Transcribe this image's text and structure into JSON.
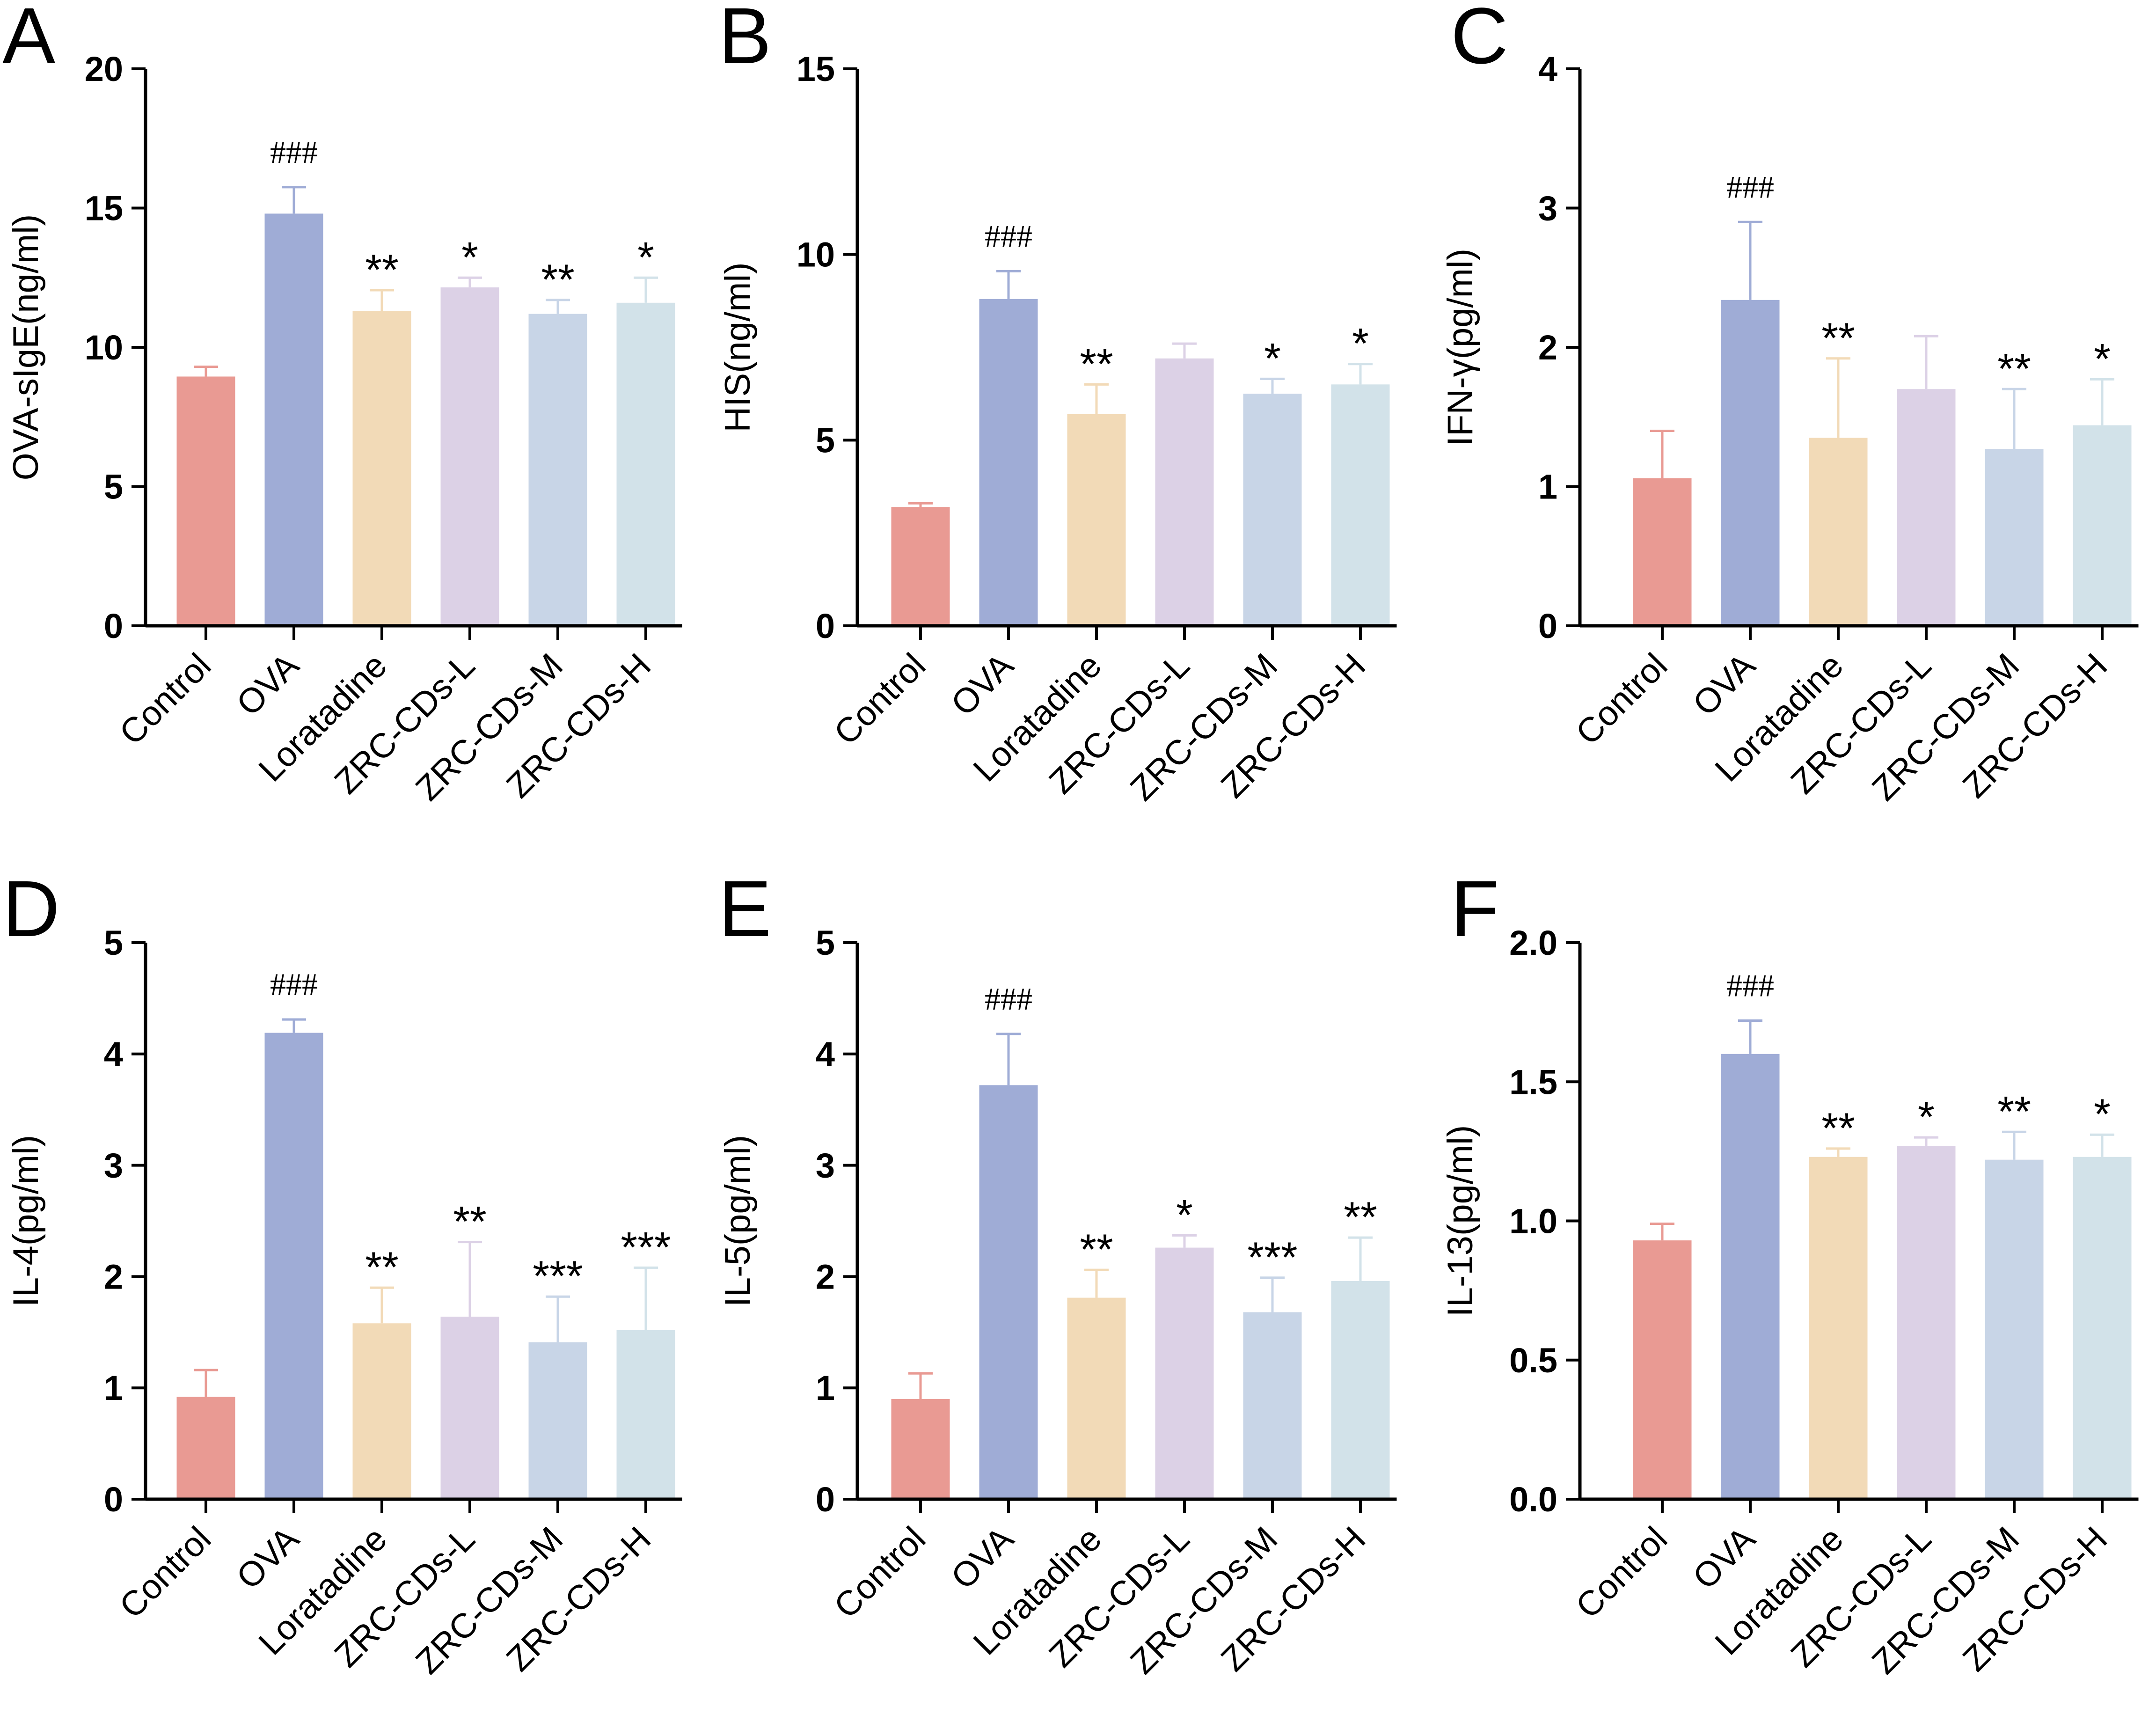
{
  "colors": {
    "Control": "#E99A93",
    "OVA": "#9FACD6",
    "Loratadine": "#F2DAB7",
    "ZRC-CDs-L": "#DCD1E6",
    "ZRC-CDs-M": "#C8D5E7",
    "ZRC-CDs-H": "#D2E2E9",
    "axis": "#000000"
  },
  "chart_data": [
    {
      "panel": "A",
      "type": "bar",
      "ylabel": "OVA-sIgE(ng/ml)",
      "ylim": [
        0,
        20
      ],
      "yticks": [
        "0",
        "5",
        "10",
        "15",
        "20"
      ],
      "categories": [
        "Control",
        "OVA",
        "Loratadine",
        "ZRC-CDs-L",
        "ZRC-CDs-M",
        "ZRC-CDs-H"
      ],
      "values": [
        8.95,
        14.8,
        11.3,
        12.15,
        11.2,
        11.6
      ],
      "errors": [
        0.35,
        0.95,
        0.75,
        0.35,
        0.5,
        0.9
      ],
      "annotations": [
        "",
        "###",
        "**",
        "*",
        "**",
        "*"
      ]
    },
    {
      "panel": "B",
      "type": "bar",
      "ylabel": "HIS(ng/ml)",
      "ylim": [
        0,
        15
      ],
      "yticks": [
        "0",
        "5",
        "10",
        "15"
      ],
      "categories": [
        "Control",
        "OVA",
        "Loratadine",
        "ZRC-CDs-L",
        "ZRC-CDs-M",
        "ZRC-CDs-H"
      ],
      "values": [
        3.2,
        8.8,
        5.7,
        7.2,
        6.25,
        6.5
      ],
      "errors": [
        0.1,
        0.75,
        0.8,
        0.4,
        0.4,
        0.55
      ],
      "annotations": [
        "",
        "###",
        "**",
        "",
        "*",
        "*"
      ]
    },
    {
      "panel": "C",
      "type": "bar",
      "ylabel": "IFN-γ(pg/ml)",
      "ylim": [
        0,
        4
      ],
      "yticks": [
        "0",
        "1",
        "2",
        "3",
        "4"
      ],
      "categories": [
        "Control",
        "OVA",
        "Loratadine",
        "ZRC-CDs-L",
        "ZRC-CDs-M",
        "ZRC-CDs-H"
      ],
      "values": [
        1.06,
        2.34,
        1.35,
        1.7,
        1.27,
        1.44
      ],
      "errors": [
        0.34,
        0.56,
        0.57,
        0.38,
        0.43,
        0.33
      ],
      "annotations": [
        "",
        "###",
        "**",
        "",
        "**",
        "*"
      ]
    },
    {
      "panel": "D",
      "type": "bar",
      "ylabel": "IL-4(pg/ml)",
      "ylim": [
        0,
        5
      ],
      "yticks": [
        "0",
        "1",
        "2",
        "3",
        "4",
        "5"
      ],
      "categories": [
        "Control",
        "OVA",
        "Loratadine",
        "ZRC-CDs-L",
        "ZRC-CDs-M",
        "ZRC-CDs-H"
      ],
      "values": [
        0.92,
        4.19,
        1.58,
        1.64,
        1.41,
        1.52
      ],
      "errors": [
        0.24,
        0.12,
        0.32,
        0.67,
        0.41,
        0.56
      ],
      "annotations": [
        "",
        "###",
        "**",
        "**",
        "***",
        "***"
      ]
    },
    {
      "panel": "E",
      "type": "bar",
      "ylabel": "IL-5(pg/ml)",
      "ylim": [
        0,
        5
      ],
      "yticks": [
        "0",
        "1",
        "2",
        "3",
        "4",
        "5"
      ],
      "categories": [
        "Control",
        "OVA",
        "Loratadine",
        "ZRC-CDs-L",
        "ZRC-CDs-M",
        "ZRC-CDs-H"
      ],
      "values": [
        0.9,
        3.72,
        1.81,
        2.26,
        1.68,
        1.96
      ],
      "errors": [
        0.23,
        0.46,
        0.25,
        0.11,
        0.31,
        0.39
      ],
      "annotations": [
        "",
        "###",
        "**",
        "*",
        "***",
        "**"
      ]
    },
    {
      "panel": "F",
      "type": "bar",
      "ylabel": "IL-13(pg/ml)",
      "ylim": [
        0,
        2.0
      ],
      "yticks": [
        "0.0",
        "0.5",
        "1.0",
        "1.5",
        "2.0"
      ],
      "categories": [
        "Control",
        "OVA",
        "Loratadine",
        "ZRC-CDs-L",
        "ZRC-CDs-M",
        "ZRC-CDs-H"
      ],
      "values": [
        0.93,
        1.6,
        1.23,
        1.27,
        1.22,
        1.23
      ],
      "errors": [
        0.06,
        0.12,
        0.03,
        0.03,
        0.1,
        0.08
      ],
      "annotations": [
        "",
        "###",
        "**",
        "*",
        "**",
        "*"
      ]
    }
  ]
}
